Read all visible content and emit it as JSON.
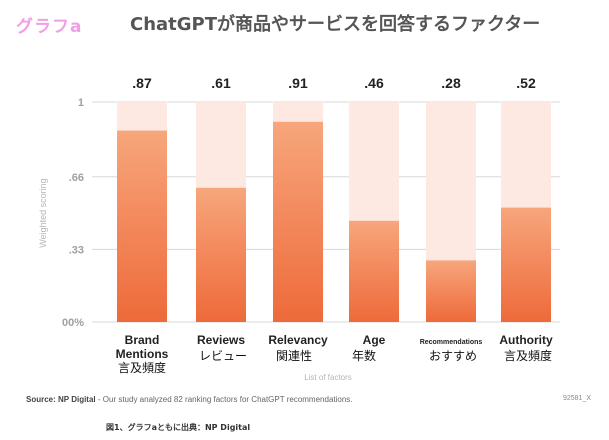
{
  "header": {
    "tag": "グラフa",
    "title": "ChatGPTが商品やサービスを回答するファクター"
  },
  "colors": {
    "bar_top": "#f7a67c",
    "bar_bottom": "#ee6a3a",
    "track": "#fde9e2",
    "axis_text": "#a0a0a0",
    "tag": "#f29ee6"
  },
  "chart_data": {
    "type": "bar",
    "ylabel": "Weighted scoring",
    "xlabel": "List of factors",
    "ylim": [
      0,
      1
    ],
    "yticks": [
      {
        "value": 1,
        "label": "1"
      },
      {
        "value": 0.66,
        "label": ".66"
      },
      {
        "value": 0.33,
        "label": ".33"
      },
      {
        "value": 0,
        "label": "00%"
      }
    ],
    "grid": true,
    "categories": [
      {
        "label": [
          "Brand",
          "Mentions"
        ],
        "ja": "言及頻度",
        "value": 0.87,
        "value_label": ".87",
        "small": false
      },
      {
        "label": [
          "Reviews"
        ],
        "ja": "レビュー",
        "value": 0.61,
        "value_label": ".61",
        "small": false
      },
      {
        "label": [
          "Relevancy"
        ],
        "ja": "関連性",
        "value": 0.91,
        "value_label": ".91",
        "small": false
      },
      {
        "label": [
          "Age"
        ],
        "ja": "年数",
        "value": 0.46,
        "value_label": ".46",
        "small": false
      },
      {
        "label": [
          "Recommendations"
        ],
        "ja": "おすすめ",
        "value": 0.28,
        "value_label": ".28",
        "small": true
      },
      {
        "label": [
          "Authority"
        ],
        "ja": "言及頻度",
        "value": 0.52,
        "value_label": ".52",
        "small": false
      }
    ]
  },
  "footer": {
    "source_prefix": "Source: NP Digital",
    "source_text": " - Our study analyzed 82 ranking factors for ChatGPT recommendations.",
    "chart_id": "92581_X",
    "caption": "図1、グラフaともに出典：NP Digital"
  }
}
